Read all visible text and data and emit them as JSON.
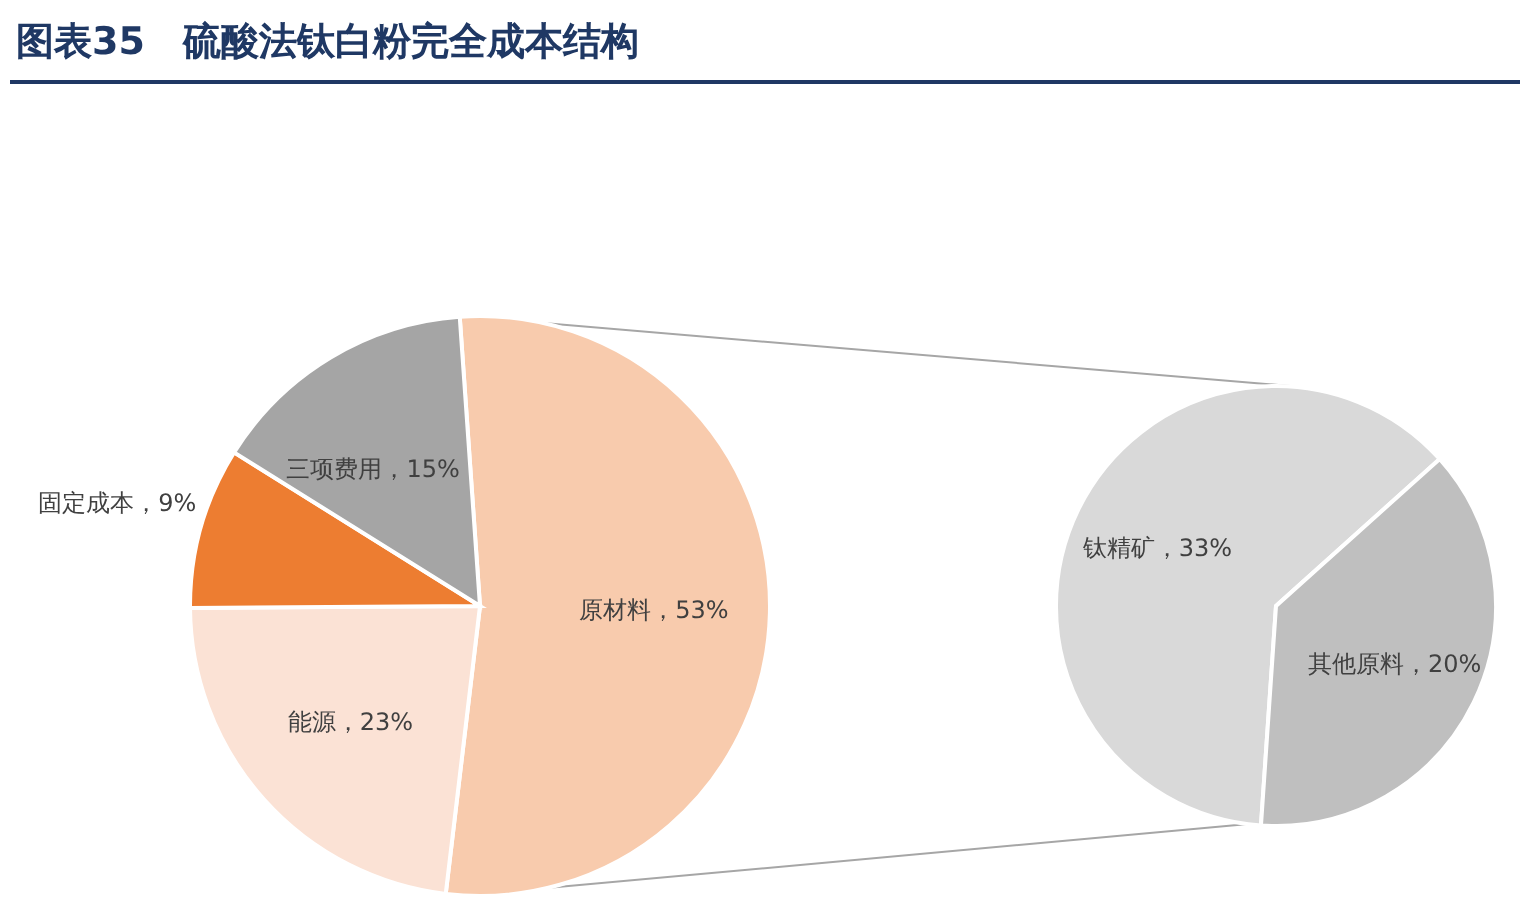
{
  "chart_data": [
    {
      "type": "pie",
      "title": "图表35　硫酸法钛白粉完全成本结构",
      "categories": [
        "原材料",
        "能源",
        "固定成本",
        "三项费用"
      ],
      "values": [
        53,
        23,
        9,
        15
      ],
      "colors": [
        "#f8cbad",
        "#fbe2d5",
        "#ed7d31",
        "#a5a5a5"
      ],
      "value_labels": [
        "53%",
        "23%",
        "9%",
        "15%"
      ]
    },
    {
      "type": "pie",
      "categories": [
        "钛精矿",
        "其他原料"
      ],
      "values": [
        33,
        20
      ],
      "colors": [
        "#d9d9d9",
        "#bfbfbf"
      ],
      "value_labels": [
        "33%",
        "20%"
      ]
    }
  ]
}
